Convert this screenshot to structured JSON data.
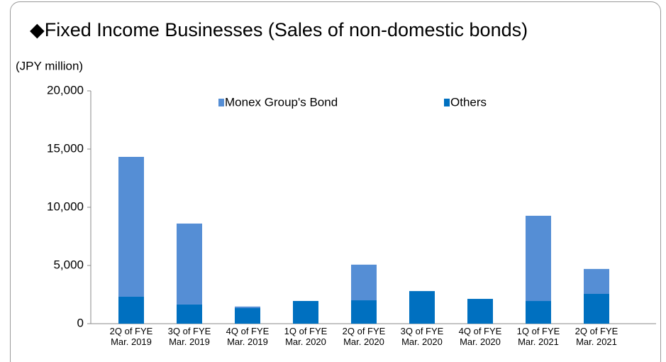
{
  "chart_data": {
    "type": "stacked_bar",
    "title": "◆Fixed Income Businesses (Sales of non-domestic bonds)",
    "y_label": "(JPY million)",
    "categories": [
      "2Q of FYE\nMar. 2019",
      "3Q of FYE\nMar. 2019",
      "4Q of FYE\nMar. 2019",
      "1Q of FYE\nMar. 2020",
      "2Q of FYE\nMar. 2020",
      "3Q of FYE\nMar. 2020",
      "4Q of FYE\nMar. 2020",
      "1Q of FYE\nMar. 2021",
      "2Q of FYE\nMar. 2021"
    ],
    "series": [
      {
        "name": "Monex Group's Bond",
        "color": "#558ed5",
        "values": [
          12010,
          6950,
          130,
          0,
          3060,
          0,
          0,
          7320,
          2140
        ]
      },
      {
        "name": "Others",
        "color": "#0070c0",
        "values": [
          2320,
          1650,
          1340,
          1950,
          2010,
          2800,
          2130,
          1950,
          2560
        ]
      }
    ],
    "ylim": [
      0,
      20000
    ],
    "yticks": [
      0,
      {
        "value": 5000,
        "label": "5,000"
      },
      {
        "value": 10000,
        "label": "10,000"
      },
      {
        "value": 15000,
        "label": "15,000"
      },
      {
        "value": 20000,
        "label": "20,000"
      }
    ],
    "legend": "top"
  }
}
